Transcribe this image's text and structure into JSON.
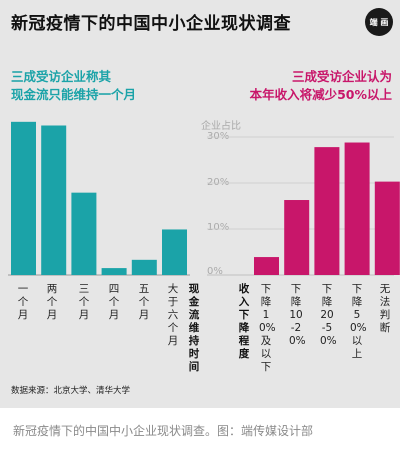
{
  "title": "新冠疫情下的中国中小企业现状调查",
  "logo_text": "端 画",
  "source": "数据来源：北京大学、清华大学",
  "caption": "新冠疫情下的中国中小企业现状调查。图：端传媒设计部",
  "colors": {
    "left": "#1ba3a8",
    "right": "#c8166a",
    "background": "#e6e6e6"
  },
  "chart_data": [
    {
      "type": "bar",
      "subtitle_lines": [
        "三成受访企业称其",
        "现金流只能维持一个月"
      ],
      "xlabel": "现金流维持时间",
      "categories": [
        "一个月",
        "两个月",
        "三个月",
        "四个月",
        "五个月",
        "大于六个月"
      ],
      "values": [
        33.3,
        32.5,
        17.9,
        1.5,
        3.3,
        9.9
      ],
      "ylim": [
        0,
        35
      ],
      "color": "#1ba3a8"
    },
    {
      "type": "bar",
      "subtitle_lines": [
        "三成受访企业认为",
        "本年收入将减少50%以上"
      ],
      "xlabel": "收入下降程度",
      "ylabel": "企业占比",
      "categories": [
        "下降10%及以下",
        "下降10-20%",
        "下降20-50%",
        "下降50%以上",
        "无法判断"
      ],
      "values": [
        3.9,
        16.3,
        27.8,
        28.8,
        20.3
      ],
      "yticks": [
        "0%",
        "10%",
        "20%",
        "30%"
      ],
      "ylim": [
        0,
        35
      ],
      "color": "#c8166a",
      "grid": true
    }
  ]
}
